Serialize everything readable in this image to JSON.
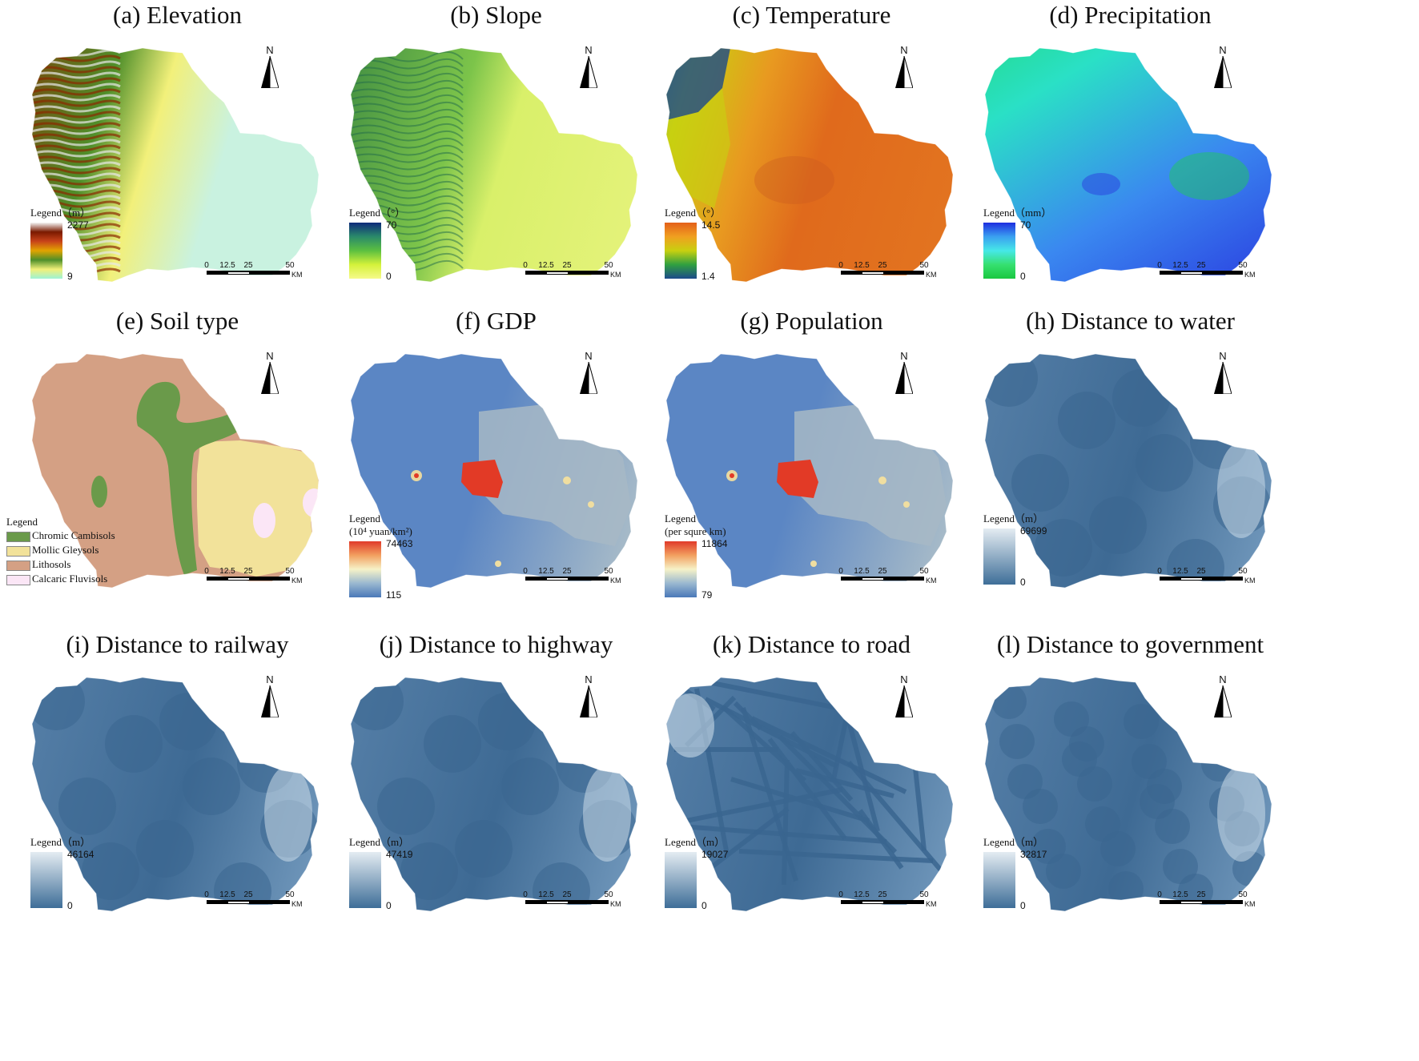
{
  "panels": [
    {
      "id": "a",
      "title": "(a) Elevation",
      "legend_title": "Legend（m）",
      "max_label": "2277",
      "min_label": "9",
      "ramp_colors": [
        "#f4f4f4",
        "#7a1a00",
        "#c8431a",
        "#e2a400",
        "#4f8f2a",
        "#f2f07a",
        "#9ef3d6"
      ],
      "map_fill": [
        "#c9f2e0",
        "#8a2a00"
      ],
      "style": "elevation"
    },
    {
      "id": "b",
      "title": "(b) Slope",
      "legend_title": "Legend（°）",
      "max_label": "70",
      "min_label": "0",
      "ramp_colors": [
        "#0e2a7a",
        "#2a8a6a",
        "#5cc040",
        "#d4f23a",
        "#f6fa8a"
      ],
      "map_fill": [
        "#d9f06a",
        "#2f7d40"
      ],
      "style": "slope"
    },
    {
      "id": "c",
      "title": "(c) Temperature",
      "legend_title": "Legend（°）",
      "max_label": "14.5",
      "min_label": "1.4",
      "ramp_colors": [
        "#e4601a",
        "#f0a020",
        "#c8d010",
        "#30a040",
        "#1c4a8a"
      ],
      "map_fill": [
        "#e06a1c",
        "#2a7bb0"
      ],
      "style": "temperature"
    },
    {
      "id": "d",
      "title": "(d) Precipitation",
      "legend_title": "Legend（mm）",
      "max_label": "70",
      "min_label": "0",
      "ramp_colors": [
        "#1e2ee0",
        "#3aa0f0",
        "#46e8e8",
        "#36e070",
        "#1ac840"
      ],
      "map_fill": [
        "#2ae0c6",
        "#2a3ee0"
      ],
      "style": "precip"
    },
    {
      "id": "e",
      "title": "(e) Soil type",
      "legend_title": "Legend",
      "style": "soil",
      "soil_classes": [
        {
          "label": "Chromic Cambisols",
          "color": "#6a9a4a"
        },
        {
          "label": "Mollic Gleysols",
          "color": "#f2e29a"
        },
        {
          "label": "Lithosols",
          "color": "#d4a084"
        },
        {
          "label": "Calcaric Fluvisols",
          "color": "#fbe6f6"
        }
      ]
    },
    {
      "id": "f",
      "title": "(f) GDP",
      "legend_title": "Legend",
      "legend_subtitle": "(10⁴ yuan/km²)",
      "max_label": "74463",
      "min_label": "115",
      "ramp_colors": [
        "#e03a2a",
        "#f2a060",
        "#f6f2c8",
        "#9ab8d0",
        "#4a78b8"
      ],
      "map_fill": [
        "#5b86c4",
        "#d8dcb8"
      ],
      "style": "gdp"
    },
    {
      "id": "g",
      "title": "(g) Population",
      "legend_title": "Legend",
      "legend_subtitle": "(per squre km)",
      "max_label": "11864",
      "min_label": "79",
      "ramp_colors": [
        "#e03a2a",
        "#f2a060",
        "#f6f2c8",
        "#9ab8d0",
        "#4a78b8"
      ],
      "map_fill": [
        "#5b86c4",
        "#d8dcb8"
      ],
      "style": "gdp"
    },
    {
      "id": "h",
      "title": "(h)  Distance to water",
      "legend_title": "Legend（m）",
      "max_label": "69699",
      "min_label": "0",
      "ramp_colors": [
        "#e4ecf2",
        "#3e6e98"
      ],
      "map_fill": [
        "#3e6a94",
        "#d6e4ee"
      ],
      "style": "dist"
    },
    {
      "id": "i",
      "title": "(i)  Distance to railway",
      "legend_title": "Legend（m）",
      "max_label": "46164",
      "min_label": "0",
      "ramp_colors": [
        "#e4ecf2",
        "#3e6e98"
      ],
      "map_fill": [
        "#3e6a94",
        "#d6e4ee"
      ],
      "style": "dist"
    },
    {
      "id": "j",
      "title": "(j)  Distance to highway",
      "legend_title": "Legend（m）",
      "max_label": "47419",
      "min_label": "0",
      "ramp_colors": [
        "#e4ecf2",
        "#3e6e98"
      ],
      "map_fill": [
        "#3e6a94",
        "#d6e4ee"
      ],
      "style": "dist"
    },
    {
      "id": "k",
      "title": "(k)  Distance to road",
      "legend_title": "Legend（m）",
      "max_label": "19027",
      "min_label": "0",
      "ramp_colors": [
        "#e4ecf2",
        "#3e6e98"
      ],
      "map_fill": [
        "#3e6a94",
        "#d6e4ee"
      ],
      "style": "road"
    },
    {
      "id": "l",
      "title": "(l)  Distance to government",
      "legend_title": "Legend（m）",
      "max_label": "32817",
      "min_label": "0",
      "ramp_colors": [
        "#e4ecf2",
        "#3e6e98"
      ],
      "map_fill": [
        "#3e6a94",
        "#d6e4ee"
      ],
      "style": "gov"
    }
  ],
  "north_letter": "N",
  "scale_ticks": [
    "0",
    "12.5",
    "25",
    "50"
  ],
  "scale_unit": "KM"
}
